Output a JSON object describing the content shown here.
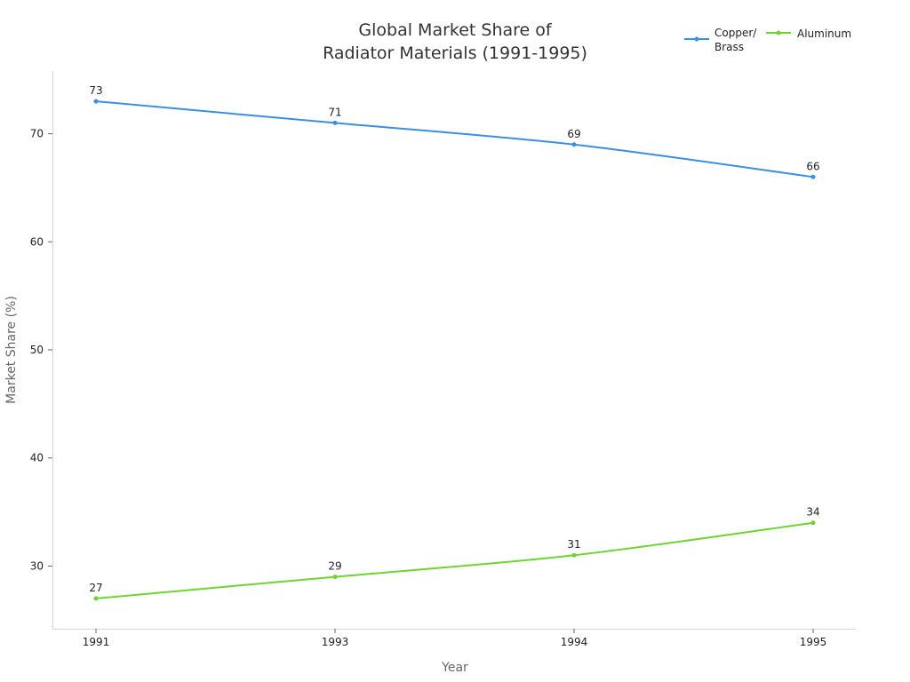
{
  "chart_data": {
    "type": "line",
    "title_lines": [
      "Global Market Share of",
      "Radiator Materials (1991-1995)"
    ],
    "xlabel": "Year",
    "ylabel": "Market Share (%)",
    "categories": [
      "1991",
      "1993",
      "1994",
      "1995"
    ],
    "ylim": [
      24.2,
      75.8
    ],
    "yticks": [
      30,
      40,
      50,
      60,
      70
    ],
    "grid": false,
    "legend_position": "top-right",
    "series": [
      {
        "name_lines": [
          "Copper/",
          "Brass"
        ],
        "color": "#3b8fe0",
        "values": [
          73,
          71,
          69,
          66
        ]
      },
      {
        "name_lines": [
          "Aluminum"
        ],
        "color": "#6dd432",
        "values": [
          27,
          29,
          31,
          34
        ]
      }
    ]
  }
}
